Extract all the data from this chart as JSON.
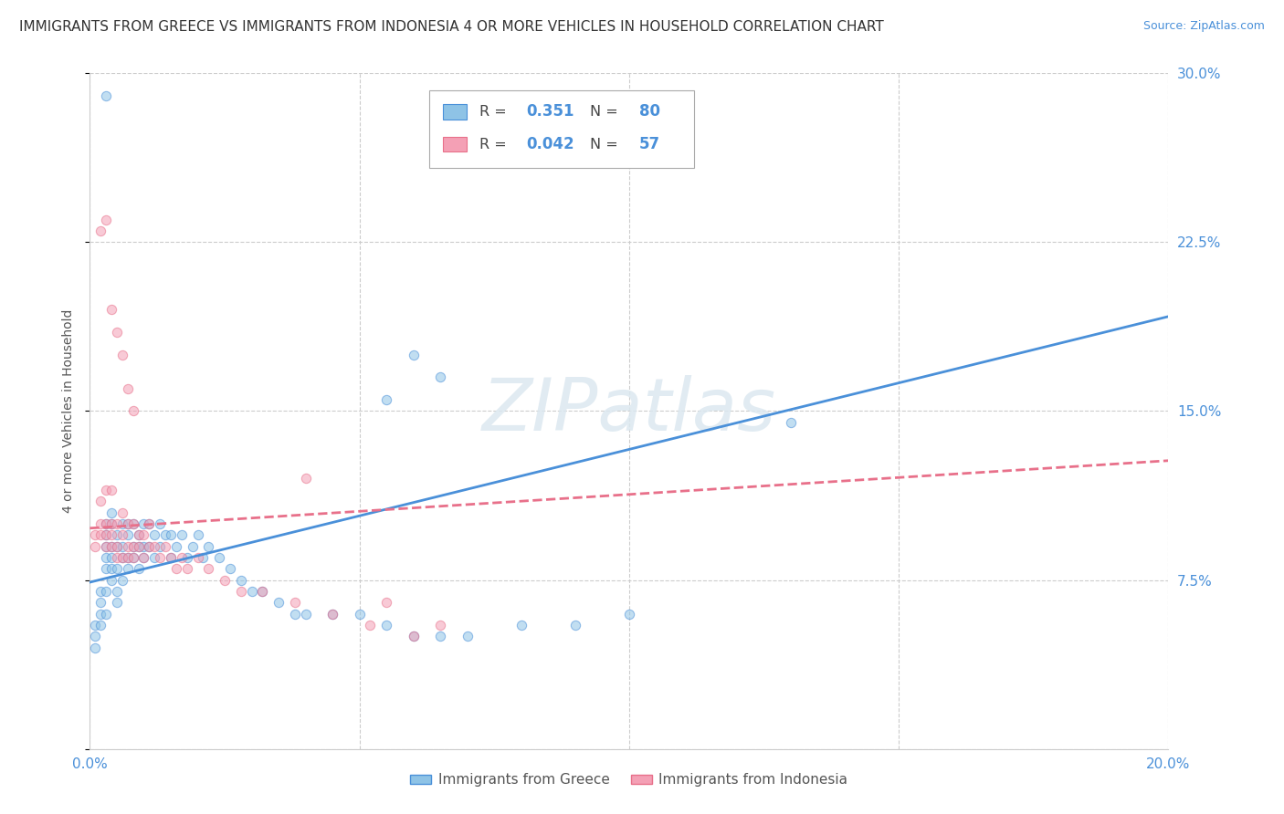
{
  "title": "IMMIGRANTS FROM GREECE VS IMMIGRANTS FROM INDONESIA 4 OR MORE VEHICLES IN HOUSEHOLD CORRELATION CHART",
  "source": "Source: ZipAtlas.com",
  "ylabel_left": "4 or more Vehicles in Household",
  "legend_label1": "Immigrants from Greece",
  "legend_label2": "Immigrants from Indonesia",
  "R1": 0.351,
  "N1": 80,
  "R2": 0.042,
  "N2": 57,
  "xlim": [
    0.0,
    0.2
  ],
  "ylim": [
    0.0,
    0.3
  ],
  "yticks_right": [
    0.0,
    0.075,
    0.15,
    0.225,
    0.3
  ],
  "ytick_labels_right": [
    "",
    "7.5%",
    "15.0%",
    "22.5%",
    "30.0%"
  ],
  "xticks": [
    0.0,
    0.05,
    0.1,
    0.15,
    0.2
  ],
  "xtick_labels": [
    "0.0%",
    "",
    "",
    "",
    "20.0%"
  ],
  "color_greece": "#8ec3e6",
  "color_indonesia": "#f4a0b5",
  "trendline_greece_color": "#4a90d9",
  "trendline_indonesia_color": "#e8708a",
  "background_color": "#ffffff",
  "watermark": "ZIPatlas",
  "watermark_color": "#dce8f0",
  "title_fontsize": 11,
  "axis_label_fontsize": 10,
  "tick_fontsize": 11,
  "scatter_alpha": 0.55,
  "scatter_size": 55,
  "trendline_blue_x0": 0.0,
  "trendline_blue_y0": 0.074,
  "trendline_blue_x1": 0.2,
  "trendline_blue_y1": 0.192,
  "trendline_pink_x0": 0.0,
  "trendline_pink_y0": 0.098,
  "trendline_pink_x1": 0.2,
  "trendline_pink_y1": 0.128,
  "greece_x": [
    0.001,
    0.001,
    0.001,
    0.002,
    0.002,
    0.002,
    0.002,
    0.003,
    0.003,
    0.003,
    0.003,
    0.003,
    0.003,
    0.003,
    0.004,
    0.004,
    0.004,
    0.004,
    0.004,
    0.004,
    0.005,
    0.005,
    0.005,
    0.005,
    0.005,
    0.006,
    0.006,
    0.006,
    0.006,
    0.007,
    0.007,
    0.007,
    0.007,
    0.008,
    0.008,
    0.008,
    0.009,
    0.009,
    0.009,
    0.01,
    0.01,
    0.01,
    0.011,
    0.011,
    0.012,
    0.012,
    0.013,
    0.013,
    0.014,
    0.015,
    0.015,
    0.016,
    0.017,
    0.018,
    0.019,
    0.02,
    0.021,
    0.022,
    0.024,
    0.026,
    0.028,
    0.03,
    0.032,
    0.035,
    0.038,
    0.04,
    0.045,
    0.05,
    0.055,
    0.06,
    0.065,
    0.07,
    0.08,
    0.09,
    0.1,
    0.13,
    0.003,
    0.06,
    0.065,
    0.055
  ],
  "greece_y": [
    0.055,
    0.05,
    0.045,
    0.06,
    0.065,
    0.055,
    0.07,
    0.06,
    0.07,
    0.08,
    0.085,
    0.09,
    0.095,
    0.1,
    0.075,
    0.08,
    0.085,
    0.09,
    0.1,
    0.105,
    0.065,
    0.07,
    0.08,
    0.09,
    0.095,
    0.075,
    0.085,
    0.09,
    0.1,
    0.08,
    0.085,
    0.095,
    0.1,
    0.085,
    0.09,
    0.1,
    0.08,
    0.09,
    0.095,
    0.085,
    0.09,
    0.1,
    0.09,
    0.1,
    0.085,
    0.095,
    0.09,
    0.1,
    0.095,
    0.085,
    0.095,
    0.09,
    0.095,
    0.085,
    0.09,
    0.095,
    0.085,
    0.09,
    0.085,
    0.08,
    0.075,
    0.07,
    0.07,
    0.065,
    0.06,
    0.06,
    0.06,
    0.06,
    0.055,
    0.05,
    0.05,
    0.05,
    0.055,
    0.055,
    0.06,
    0.145,
    0.29,
    0.175,
    0.165,
    0.155
  ],
  "indonesia_x": [
    0.001,
    0.001,
    0.002,
    0.002,
    0.002,
    0.003,
    0.003,
    0.003,
    0.003,
    0.004,
    0.004,
    0.004,
    0.004,
    0.005,
    0.005,
    0.005,
    0.006,
    0.006,
    0.006,
    0.007,
    0.007,
    0.007,
    0.008,
    0.008,
    0.008,
    0.009,
    0.009,
    0.01,
    0.01,
    0.011,
    0.011,
    0.012,
    0.013,
    0.014,
    0.015,
    0.016,
    0.017,
    0.018,
    0.02,
    0.022,
    0.025,
    0.028,
    0.032,
    0.038,
    0.045,
    0.052,
    0.06,
    0.002,
    0.003,
    0.004,
    0.005,
    0.006,
    0.007,
    0.008,
    0.04,
    0.055,
    0.065
  ],
  "indonesia_y": [
    0.09,
    0.095,
    0.095,
    0.1,
    0.11,
    0.09,
    0.095,
    0.1,
    0.115,
    0.09,
    0.095,
    0.1,
    0.115,
    0.085,
    0.09,
    0.1,
    0.085,
    0.095,
    0.105,
    0.085,
    0.09,
    0.1,
    0.085,
    0.09,
    0.1,
    0.09,
    0.095,
    0.085,
    0.095,
    0.09,
    0.1,
    0.09,
    0.085,
    0.09,
    0.085,
    0.08,
    0.085,
    0.08,
    0.085,
    0.08,
    0.075,
    0.07,
    0.07,
    0.065,
    0.06,
    0.055,
    0.05,
    0.23,
    0.235,
    0.195,
    0.185,
    0.175,
    0.16,
    0.15,
    0.12,
    0.065,
    0.055
  ]
}
